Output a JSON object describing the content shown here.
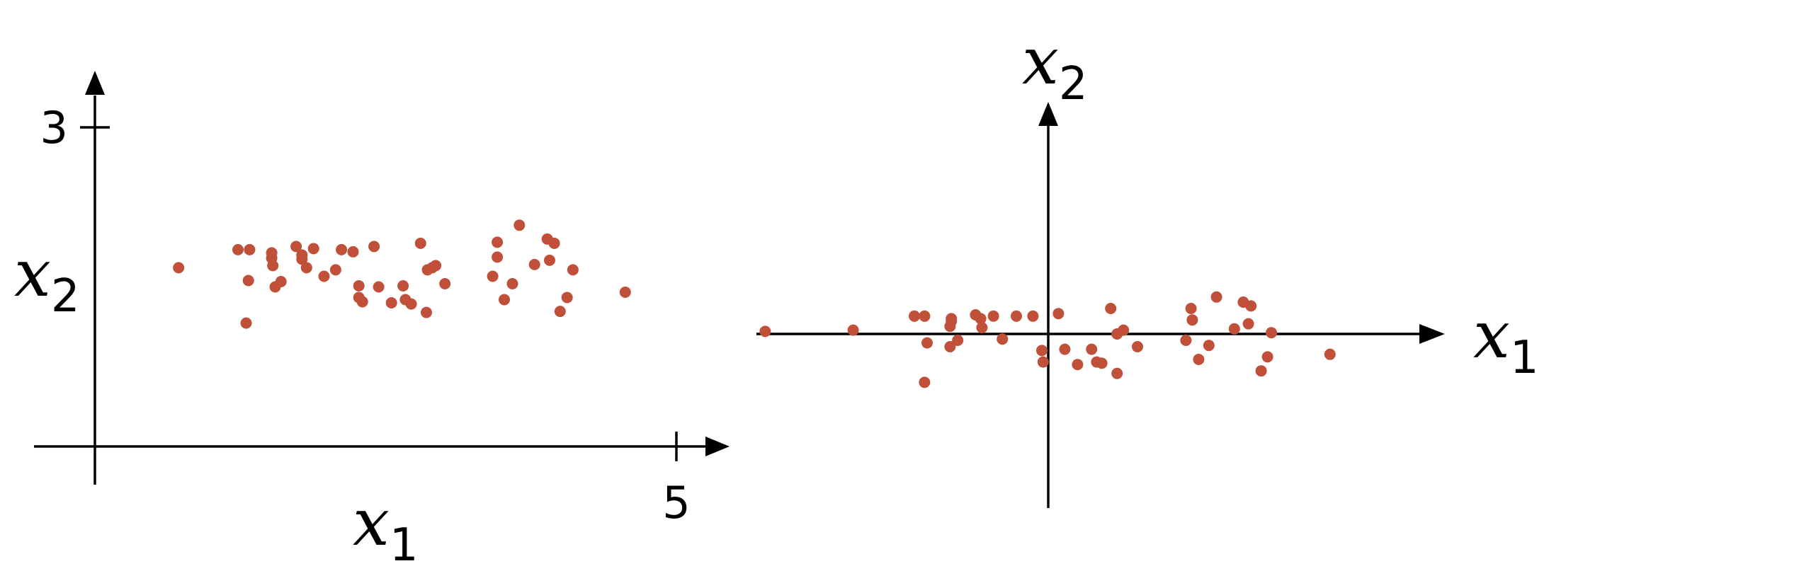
{
  "chart_data": [
    {
      "type": "scatter",
      "xlabel": "x",
      "xlabel_sub": "1",
      "ylabel": "x",
      "ylabel_sub": "2",
      "x_tick_label": "5",
      "y_tick_label": "3",
      "xlim": [
        0,
        5
      ],
      "ylim": [
        0,
        3
      ],
      "grid": false,
      "point_color": "#c0503a",
      "points": [
        [
          0.72,
          1.68
        ],
        [
          1.23,
          1.85
        ],
        [
          1.33,
          1.85
        ],
        [
          1.32,
          1.56
        ],
        [
          1.3,
          1.16
        ],
        [
          1.52,
          1.77
        ],
        [
          1.53,
          1.7
        ],
        [
          1.52,
          1.82
        ],
        [
          1.55,
          1.5
        ],
        [
          1.6,
          1.55
        ],
        [
          1.73,
          1.88
        ],
        [
          1.78,
          1.8
        ],
        [
          1.78,
          1.76
        ],
        [
          1.82,
          1.68
        ],
        [
          1.88,
          1.86
        ],
        [
          1.97,
          1.6
        ],
        [
          2.07,
          1.66
        ],
        [
          2.12,
          1.85
        ],
        [
          2.22,
          1.83
        ],
        [
          2.27,
          1.51
        ],
        [
          2.27,
          1.4
        ],
        [
          2.3,
          1.36
        ],
        [
          2.4,
          1.88
        ],
        [
          2.44,
          1.5
        ],
        [
          2.55,
          1.35
        ],
        [
          2.65,
          1.51
        ],
        [
          2.67,
          1.38
        ],
        [
          2.72,
          1.34
        ],
        [
          2.8,
          1.91
        ],
        [
          2.85,
          1.26
        ],
        [
          2.86,
          1.66
        ],
        [
          2.9,
          1.68
        ],
        [
          2.93,
          1.7
        ],
        [
          3.01,
          1.53
        ],
        [
          3.42,
          1.6
        ],
        [
          3.46,
          1.92
        ],
        [
          3.46,
          1.78
        ],
        [
          3.52,
          1.38
        ],
        [
          3.59,
          1.53
        ],
        [
          3.65,
          2.08
        ],
        [
          3.78,
          1.71
        ],
        [
          3.89,
          1.95
        ],
        [
          3.91,
          1.75
        ],
        [
          3.95,
          1.91
        ],
        [
          4.0,
          1.27
        ],
        [
          4.06,
          1.4
        ],
        [
          4.11,
          1.66
        ],
        [
          4.56,
          1.45
        ]
      ]
    },
    {
      "type": "scatter",
      "xlabel": "x",
      "xlabel_sub": "1",
      "ylabel": "x",
      "ylabel_sub": "2",
      "grid": false,
      "point_color": "#c0503a",
      "points": [
        [
          -2.22,
          0.02
        ],
        [
          -1.53,
          0.03
        ],
        [
          -1.05,
          0.14
        ],
        [
          -0.97,
          0.14
        ],
        [
          -0.95,
          -0.07
        ],
        [
          -0.97,
          -0.38
        ],
        [
          -0.77,
          0.06
        ],
        [
          -0.76,
          0.1
        ],
        [
          -0.76,
          0.12
        ],
        [
          -0.77,
          -0.1
        ],
        [
          -0.71,
          -0.05
        ],
        [
          -0.57,
          0.15
        ],
        [
          -0.53,
          0.12
        ],
        [
          -0.52,
          0.05
        ],
        [
          -0.43,
          0.14
        ],
        [
          -0.36,
          -0.04
        ],
        [
          -0.25,
          0.14
        ],
        [
          -0.12,
          0.14
        ],
        [
          -0.05,
          -0.13
        ],
        [
          -0.04,
          -0.22
        ],
        [
          0.08,
          0.16
        ],
        [
          0.13,
          -0.12
        ],
        [
          0.23,
          -0.24
        ],
        [
          0.34,
          -0.12
        ],
        [
          0.38,
          -0.22
        ],
        [
          0.42,
          -0.23
        ],
        [
          0.49,
          0.2
        ],
        [
          0.54,
          -0.31
        ],
        [
          0.54,
          0.0
        ],
        [
          0.59,
          0.03
        ],
        [
          0.7,
          -0.1
        ],
        [
          1.08,
          -0.05
        ],
        [
          1.12,
          0.2
        ],
        [
          1.13,
          0.11
        ],
        [
          1.18,
          -0.2
        ],
        [
          1.26,
          -0.09
        ],
        [
          1.32,
          0.29
        ],
        [
          1.46,
          0.04
        ],
        [
          1.53,
          0.25
        ],
        [
          1.57,
          0.08
        ],
        [
          1.59,
          0.22
        ],
        [
          1.67,
          -0.29
        ],
        [
          1.72,
          -0.18
        ],
        [
          1.75,
          0.01
        ],
        [
          2.21,
          -0.16
        ]
      ]
    }
  ]
}
